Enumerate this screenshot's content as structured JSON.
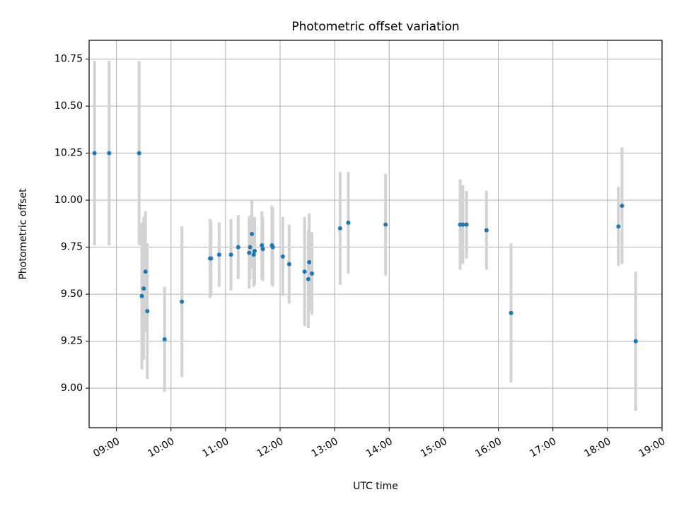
{
  "chart_data": {
    "type": "scatter",
    "title": "Photometric offset variation",
    "xlabel": "UTC time",
    "ylabel": "Photometric offset",
    "x_unit": "time",
    "xlim": [
      "08:30",
      "19:00"
    ],
    "ylim": [
      8.79,
      10.85
    ],
    "xticks": [
      "09:00",
      "10:00",
      "11:00",
      "12:00",
      "13:00",
      "14:00",
      "15:00",
      "16:00",
      "17:00",
      "18:00",
      "19:00"
    ],
    "yticks": [
      "9.00",
      "9.25",
      "9.50",
      "9.75",
      "10.00",
      "10.25",
      "10.50",
      "10.75"
    ],
    "grid": true,
    "legend": "none",
    "colors": {
      "marker": "#1f77b4",
      "errorbar": "#d3d3d3",
      "grid": "#b0b0b0"
    },
    "series": [
      {
        "points": [
          {
            "x": "08:36",
            "y": 10.25,
            "err": 0.49
          },
          {
            "x": "08:52",
            "y": 10.25,
            "err": 0.49
          },
          {
            "x": "09:25",
            "y": 10.25,
            "err": 0.49
          },
          {
            "x": "09:28",
            "y": 9.49,
            "err": 0.39
          },
          {
            "x": "09:30",
            "y": 9.53,
            "err": 0.38
          },
          {
            "x": "09:32",
            "y": 9.62,
            "err": 0.32
          },
          {
            "x": "09:34",
            "y": 9.41,
            "err": 0.36
          },
          {
            "x": "09:53",
            "y": 9.26,
            "err": 0.28
          },
          {
            "x": "10:12",
            "y": 9.46,
            "err": 0.4
          },
          {
            "x": "10:43",
            "y": 9.69,
            "err": 0.21
          },
          {
            "x": "10:44",
            "y": 9.69,
            "err": 0.2
          },
          {
            "x": "10:53",
            "y": 9.71,
            "err": 0.17
          },
          {
            "x": "11:06",
            "y": 9.71,
            "err": 0.19
          },
          {
            "x": "11:14",
            "y": 9.75,
            "err": 0.17
          },
          {
            "x": "11:26",
            "y": 9.72,
            "err": 0.19
          },
          {
            "x": "11:27",
            "y": 9.75,
            "err": 0.17
          },
          {
            "x": "11:29",
            "y": 9.82,
            "err": 0.18
          },
          {
            "x": "11:31",
            "y": 9.71,
            "err": 0.17
          },
          {
            "x": "11:32",
            "y": 9.73,
            "err": 0.18
          },
          {
            "x": "11:40",
            "y": 9.76,
            "err": 0.18
          },
          {
            "x": "11:41",
            "y": 9.74,
            "err": 0.17
          },
          {
            "x": "11:51",
            "y": 9.76,
            "err": 0.21
          },
          {
            "x": "11:52",
            "y": 9.75,
            "err": 0.21
          },
          {
            "x": "12:03",
            "y": 9.7,
            "err": 0.21
          },
          {
            "x": "12:10",
            "y": 9.66,
            "err": 0.21
          },
          {
            "x": "12:27",
            "y": 9.62,
            "err": 0.29
          },
          {
            "x": "12:31",
            "y": 9.58,
            "err": 0.26
          },
          {
            "x": "12:32",
            "y": 9.67,
            "err": 0.26
          },
          {
            "x": "12:35",
            "y": 9.61,
            "err": 0.22
          },
          {
            "x": "13:06",
            "y": 9.85,
            "err": 0.3
          },
          {
            "x": "13:15",
            "y": 9.88,
            "err": 0.27
          },
          {
            "x": "13:56",
            "y": 9.87,
            "err": 0.27
          },
          {
            "x": "15:18",
            "y": 9.87,
            "err": 0.24
          },
          {
            "x": "15:21",
            "y": 9.87,
            "err": 0.21
          },
          {
            "x": "15:25",
            "y": 9.87,
            "err": 0.18
          },
          {
            "x": "15:47",
            "y": 9.84,
            "err": 0.21
          },
          {
            "x": "16:14",
            "y": 9.4,
            "err": 0.37
          },
          {
            "x": "18:12",
            "y": 9.86,
            "err": 0.21
          },
          {
            "x": "18:16",
            "y": 9.97,
            "err": 0.31
          },
          {
            "x": "18:31",
            "y": 9.25,
            "err": 0.37
          }
        ]
      }
    ]
  }
}
